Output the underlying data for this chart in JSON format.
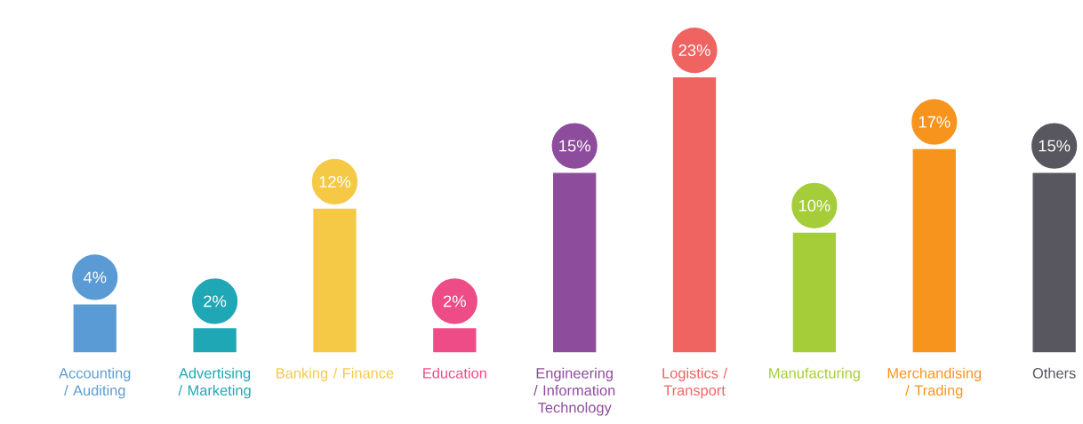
{
  "chart_data": {
    "type": "bar",
    "categories": [
      "Accounting / Auditing",
      "Advertising / Marketing",
      "Banking / Finance",
      "Education",
      "Engineering / Information Technology",
      "Logistics / Transport",
      "Manufacturing",
      "Merchandising / Trading",
      "Others"
    ],
    "values": [
      4,
      2,
      12,
      2,
      15,
      23,
      10,
      17,
      15
    ],
    "value_labels": [
      "4%",
      "2%",
      "12%",
      "2%",
      "15%",
      "23%",
      "10%",
      "17%",
      "15%"
    ],
    "colors": [
      "#5b9bd5",
      "#1fa7b5",
      "#f5c945",
      "#ee4c86",
      "#8e4c9d",
      "#ef6461",
      "#a5cd39",
      "#f7941d",
      "#58565f"
    ]
  }
}
